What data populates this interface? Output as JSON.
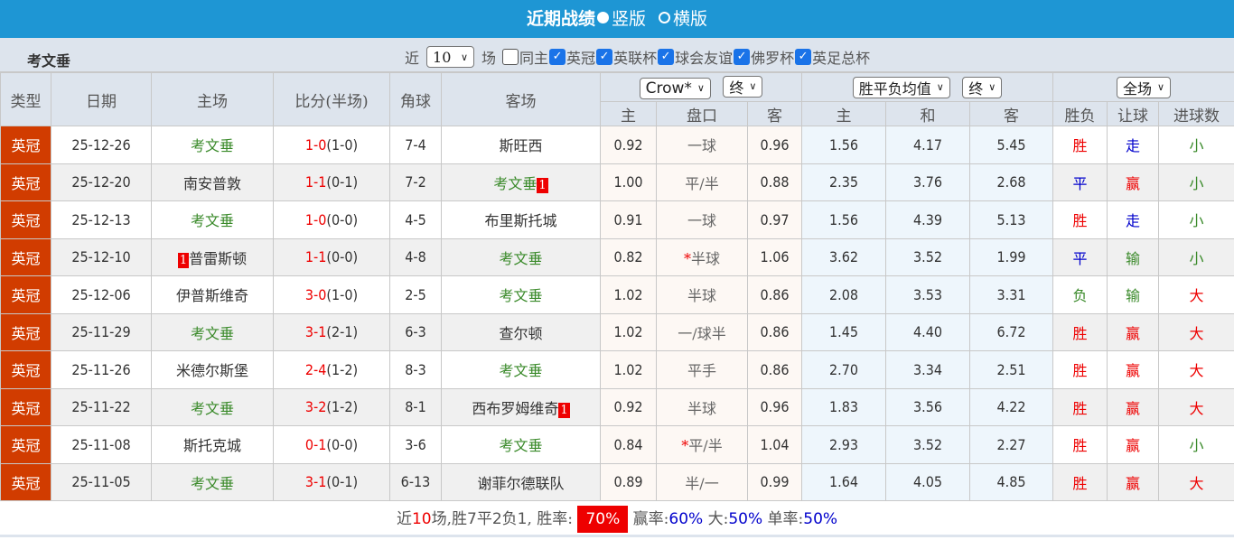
{
  "header": {
    "title": "近期战绩",
    "view_options": [
      "竖版",
      "横版"
    ],
    "selected_view": "竖版"
  },
  "filter": {
    "team": "考文垂",
    "prefix": "近",
    "count": "10",
    "suffix": "场",
    "checkboxes": [
      {
        "label": "同主",
        "checked": false
      },
      {
        "label": "英冠",
        "checked": true
      },
      {
        "label": "英联杯",
        "checked": true
      },
      {
        "label": "球会友谊",
        "checked": true
      },
      {
        "label": "佛罗杯",
        "checked": true
      },
      {
        "label": "英足总杯",
        "checked": true
      }
    ]
  },
  "columns": {
    "type": "类型",
    "date": "日期",
    "home": "主场",
    "score": "比分(半场)",
    "corners": "角球",
    "away": "客场",
    "handicap_company": "Crow*",
    "handicap_state": "终",
    "euro_type": "胜平负均值",
    "euro_state": "终",
    "period": "全场",
    "sub": [
      "主",
      "盘口",
      "客",
      "主",
      "和",
      "客",
      "胜负",
      "让球",
      "进球数"
    ]
  },
  "rows": [
    {
      "type": "英冠",
      "date": "25-12-26",
      "home": "考文垂",
      "home_card": "",
      "score": "1-0",
      "half": "(1-0)",
      "corners": "7-4",
      "away": "斯旺西",
      "away_card": "",
      "h": "0.92",
      "line": "一球",
      "line_star": false,
      "a": "0.96",
      "w": "1.56",
      "d": "4.17",
      "l": "5.45",
      "result": "胜",
      "ah": "走",
      "ou": "小"
    },
    {
      "type": "英冠",
      "date": "25-12-20",
      "home": "南安普敦",
      "home_card": "",
      "score": "1-1",
      "half": "(0-1)",
      "corners": "7-2",
      "away": "考文垂",
      "away_card": "1",
      "h": "1.00",
      "line": "平/半",
      "line_star": false,
      "a": "0.88",
      "w": "2.35",
      "d": "3.76",
      "l": "2.68",
      "result": "平",
      "ah": "赢",
      "ou": "小"
    },
    {
      "type": "英冠",
      "date": "25-12-13",
      "home": "考文垂",
      "home_card": "",
      "score": "1-0",
      "half": "(0-0)",
      "corners": "4-5",
      "away": "布里斯托城",
      "away_card": "",
      "h": "0.91",
      "line": "一球",
      "line_star": false,
      "a": "0.97",
      "w": "1.56",
      "d": "4.39",
      "l": "5.13",
      "result": "胜",
      "ah": "走",
      "ou": "小"
    },
    {
      "type": "英冠",
      "date": "25-12-10",
      "home": "普雷斯顿",
      "home_card": "1",
      "score": "1-1",
      "half": "(0-0)",
      "corners": "4-8",
      "away": "考文垂",
      "away_card": "",
      "h": "0.82",
      "line": "半球",
      "line_star": true,
      "a": "1.06",
      "w": "3.62",
      "d": "3.52",
      "l": "1.99",
      "result": "平",
      "ah": "输",
      "ou": "小"
    },
    {
      "type": "英冠",
      "date": "25-12-06",
      "home": "伊普斯维奇",
      "home_card": "",
      "score": "3-0",
      "half": "(1-0)",
      "corners": "2-5",
      "away": "考文垂",
      "away_card": "",
      "h": "1.02",
      "line": "半球",
      "line_star": false,
      "a": "0.86",
      "w": "2.08",
      "d": "3.53",
      "l": "3.31",
      "result": "负",
      "ah": "输",
      "ou": "大"
    },
    {
      "type": "英冠",
      "date": "25-11-29",
      "home": "考文垂",
      "home_card": "",
      "score": "3-1",
      "half": "(2-1)",
      "corners": "6-3",
      "away": "查尔顿",
      "away_card": "",
      "h": "1.02",
      "line": "一/球半",
      "line_star": false,
      "a": "0.86",
      "w": "1.45",
      "d": "4.40",
      "l": "6.72",
      "result": "胜",
      "ah": "赢",
      "ou": "大"
    },
    {
      "type": "英冠",
      "date": "25-11-26",
      "home": "米德尔斯堡",
      "home_card": "",
      "score": "2-4",
      "half": "(1-2)",
      "corners": "8-3",
      "away": "考文垂",
      "away_card": "",
      "h": "1.02",
      "line": "平手",
      "line_star": false,
      "a": "0.86",
      "w": "2.70",
      "d": "3.34",
      "l": "2.51",
      "result": "胜",
      "ah": "赢",
      "ou": "大"
    },
    {
      "type": "英冠",
      "date": "25-11-22",
      "home": "考文垂",
      "home_card": "",
      "score": "3-2",
      "half": "(1-2)",
      "corners": "8-1",
      "away": "西布罗姆维奇",
      "away_card": "1",
      "h": "0.92",
      "line": "半球",
      "line_star": false,
      "a": "0.96",
      "w": "1.83",
      "d": "3.56",
      "l": "4.22",
      "result": "胜",
      "ah": "赢",
      "ou": "大"
    },
    {
      "type": "英冠",
      "date": "25-11-08",
      "home": "斯托克城",
      "home_card": "",
      "score": "0-1",
      "half": "(0-0)",
      "corners": "3-6",
      "away": "考文垂",
      "away_card": "",
      "h": "0.84",
      "line": "平/半",
      "line_star": true,
      "a": "1.04",
      "w": "2.93",
      "d": "3.52",
      "l": "2.27",
      "result": "胜",
      "ah": "赢",
      "ou": "小"
    },
    {
      "type": "英冠",
      "date": "25-11-05",
      "home": "考文垂",
      "home_card": "",
      "score": "3-1",
      "half": "(0-1)",
      "corners": "6-13",
      "away": "谢菲尔德联队",
      "away_card": "",
      "h": "0.89",
      "line": "半/一",
      "line_star": false,
      "a": "0.99",
      "w": "1.64",
      "d": "4.05",
      "l": "4.85",
      "result": "胜",
      "ah": "赢",
      "ou": "大"
    }
  ],
  "summary": {
    "t1": "近",
    "n": "10",
    "t2": "场,胜",
    "win": "7",
    "t3": "平",
    "draw": "2",
    "t4": "负",
    "loss": "1",
    "t5": ", 胜率:",
    "win_rate": "70%",
    "t6": " 赢率:",
    "ah_rate": "60%",
    "t7": " 大:",
    "over_rate": "50%",
    "t8": " 单率:",
    "odd_rate": "50%"
  },
  "colors": {
    "header_bg": "#1e96d4",
    "type_bg": "#d13c00",
    "team_highlight": "#3a8a2a",
    "score": "#e00",
    "win": "#e00",
    "draw": "#00c",
    "loss": "#3a8a2a"
  }
}
